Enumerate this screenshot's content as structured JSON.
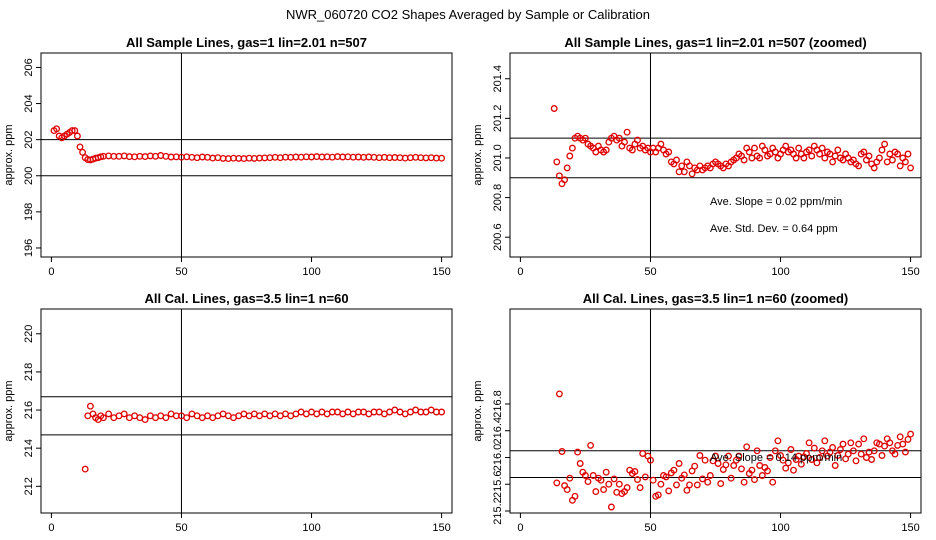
{
  "suptitle": "NWR_060720  CO2 Shapes Averaged by Sample or Calibration",
  "chart_data": [
    {
      "type": "scatter",
      "title": "All Sample Lines, gas=1 lin=2.01 n=507",
      "ylabel": "approx. ppm",
      "xlim": [
        -4,
        154
      ],
      "ylim": [
        195.5,
        206.8
      ],
      "xticks": [
        0,
        50,
        100,
        150
      ],
      "yticks": [
        196,
        198,
        200,
        202,
        204,
        206
      ],
      "vline": 50,
      "hlines": [
        200,
        202
      ],
      "annotations": [],
      "series": [
        {
          "color": "#e00000",
          "x": [
            1,
            2,
            3,
            4,
            5,
            6,
            7,
            8,
            9,
            10,
            11,
            12,
            13,
            14,
            15,
            16,
            17,
            18,
            19,
            20,
            22,
            24,
            26,
            28,
            30,
            32,
            34,
            36,
            38,
            40,
            42,
            44,
            46,
            48,
            50,
            52,
            54,
            56,
            58,
            60,
            62,
            64,
            66,
            68,
            70,
            72,
            74,
            76,
            78,
            80,
            82,
            84,
            86,
            88,
            90,
            92,
            94,
            96,
            98,
            100,
            102,
            104,
            106,
            108,
            110,
            112,
            114,
            116,
            118,
            120,
            122,
            124,
            126,
            128,
            130,
            132,
            134,
            136,
            138,
            140,
            142,
            144,
            146,
            148,
            150
          ],
          "y": [
            202.5,
            202.6,
            202.2,
            202.1,
            202.2,
            202.3,
            202.4,
            202.5,
            202.5,
            202.2,
            201.6,
            201.3,
            201.0,
            200.9,
            200.88,
            200.92,
            200.97,
            201.0,
            201.05,
            201.08,
            201.1,
            201.08,
            201.08,
            201.1,
            201.06,
            201.05,
            201.08,
            201.06,
            201.1,
            201.08,
            201.12,
            201.08,
            201.04,
            201.05,
            201.03,
            201.05,
            201.02,
            201.0,
            201.04,
            201.02,
            200.98,
            201.0,
            200.96,
            200.95,
            200.97,
            200.96,
            200.95,
            200.97,
            200.96,
            200.98,
            200.99,
            201.0,
            201.02,
            201.0,
            201.03,
            201.02,
            201.04,
            201.03,
            201.05,
            201.04,
            201.06,
            201.04,
            201.05,
            201.03,
            201.06,
            201.04,
            201.05,
            201.03,
            201.04,
            201.02,
            201.04,
            201.02,
            201.0,
            201.02,
            201.0,
            201.01,
            201.0,
            200.98,
            201.0,
            201.02,
            201.0,
            200.99,
            201.0,
            200.98,
            200.97
          ]
        }
      ]
    },
    {
      "type": "scatter",
      "title": "All Sample Lines, gas=1 lin=2.01 n=507 (zoomed)",
      "ylabel": "approx. ppm",
      "xlim": [
        -4,
        154
      ],
      "ylim": [
        200.5,
        201.53
      ],
      "xticks": [
        0,
        50,
        100,
        150
      ],
      "yticks": [
        200.6,
        200.8,
        201.0,
        201.2,
        201.4
      ],
      "ytick_labels": [
        "200.6",
        "200.8",
        "201.0",
        "201.2",
        "201.4"
      ],
      "vline": 50,
      "hlines": [
        200.9,
        201.1
      ],
      "annotations": [
        "Ave. Slope =  0.02  ppm/min",
        "Ave. Std. Dev. =  0.64  ppm"
      ],
      "series": [
        {
          "color": "#e00000",
          "x": [
            13,
            14,
            15,
            16,
            17,
            18,
            19,
            20,
            21,
            22,
            23,
            24,
            25,
            26,
            27,
            28,
            29,
            30,
            31,
            32,
            33,
            34,
            35,
            36,
            37,
            38,
            39,
            40,
            41,
            42,
            43,
            44,
            45,
            46,
            47,
            48,
            49,
            50,
            51,
            52,
            53,
            54,
            55,
            56,
            57,
            58,
            59,
            60,
            61,
            62,
            63,
            64,
            65,
            66,
            67,
            68,
            69,
            70,
            71,
            72,
            73,
            74,
            75,
            76,
            77,
            78,
            79,
            80,
            81,
            82,
            83,
            84,
            85,
            86,
            87,
            88,
            89,
            90,
            91,
            92,
            93,
            94,
            95,
            96,
            97,
            98,
            99,
            100,
            101,
            102,
            103,
            104,
            105,
            106,
            107,
            108,
            109,
            110,
            111,
            112,
            113,
            114,
            115,
            116,
            117,
            118,
            119,
            120,
            121,
            122,
            123,
            124,
            125,
            126,
            127,
            128,
            129,
            130,
            131,
            132,
            133,
            134,
            135,
            136,
            137,
            138,
            139,
            140,
            141,
            142,
            143,
            144,
            145,
            146,
            147,
            148,
            149,
            150
          ],
          "y": [
            201.25,
            200.98,
            200.91,
            200.87,
            200.89,
            200.95,
            201.01,
            201.05,
            201.1,
            201.11,
            201.1,
            201.09,
            201.1,
            201.07,
            201.06,
            201.05,
            201.03,
            201.06,
            201.04,
            201.03,
            201.04,
            201.08,
            201.1,
            201.11,
            201.09,
            201.1,
            201.06,
            201.08,
            201.13,
            201.05,
            201.04,
            201.07,
            201.09,
            201.05,
            201.06,
            201.04,
            201.05,
            201.03,
            201.05,
            201.03,
            201.05,
            201.07,
            201.04,
            201.02,
            201.03,
            200.98,
            200.97,
            200.99,
            200.93,
            200.96,
            200.93,
            200.98,
            200.96,
            200.92,
            200.95,
            200.94,
            200.96,
            200.94,
            200.95,
            200.96,
            200.95,
            200.97,
            200.98,
            200.97,
            200.96,
            200.95,
            200.97,
            200.96,
            200.98,
            200.99,
            201.0,
            201.02,
            201.01,
            200.99,
            201.05,
            201.03,
            201.0,
            201.05,
            201.01,
            201.0,
            201.06,
            201.04,
            201.01,
            201.02,
            201.05,
            201.03,
            201.0,
            201.02,
            201.04,
            201.06,
            201.03,
            201.04,
            201.02,
            201.0,
            201.05,
            201.02,
            201.0,
            201.03,
            201.04,
            201.01,
            201.06,
            201.04,
            201.02,
            201.05,
            201.0,
            201.03,
            201.02,
            200.98,
            201.01,
            201.04,
            201.0,
            200.99,
            201.02,
            201.0,
            200.98,
            200.99,
            200.97,
            200.96,
            201.02,
            201.03,
            200.99,
            201.01,
            200.97,
            200.95,
            200.98,
            201.0,
            201.04,
            201.07,
            200.98,
            201.02,
            200.99,
            201.03,
            201.02,
            200.96,
            201.0,
            200.98,
            201.02,
            200.95
          ]
        }
      ]
    },
    {
      "type": "scatter",
      "title": "All Cal. Lines, gas=3.5 lin=1 n=60",
      "ylabel": "approx. ppm",
      "xlim": [
        -4,
        154
      ],
      "ylim": [
        210.6,
        221.3
      ],
      "xticks": [
        0,
        50,
        100,
        150
      ],
      "yticks": [
        212,
        214,
        216,
        218,
        220
      ],
      "vline": 50,
      "hlines": [
        214.7,
        216.7
      ],
      "annotations": [],
      "series": [
        {
          "color": "#e00000",
          "x": [
            13,
            14,
            15,
            16,
            17,
            18,
            19,
            20,
            22,
            24,
            26,
            28,
            30,
            32,
            34,
            36,
            38,
            40,
            42,
            44,
            46,
            48,
            50,
            52,
            54,
            56,
            58,
            60,
            62,
            64,
            66,
            68,
            70,
            72,
            74,
            76,
            78,
            80,
            82,
            84,
            86,
            88,
            90,
            92,
            94,
            96,
            98,
            100,
            102,
            104,
            106,
            108,
            110,
            112,
            114,
            116,
            118,
            120,
            122,
            124,
            126,
            128,
            130,
            132,
            134,
            136,
            138,
            140,
            142,
            144,
            146,
            148,
            150
          ],
          "y": [
            212.9,
            215.7,
            216.2,
            215.8,
            215.6,
            215.5,
            215.7,
            215.6,
            215.8,
            215.6,
            215.7,
            215.8,
            215.6,
            215.7,
            215.6,
            215.5,
            215.7,
            215.6,
            215.7,
            215.6,
            215.8,
            215.7,
            215.7,
            215.6,
            215.8,
            215.7,
            215.6,
            215.7,
            215.6,
            215.7,
            215.8,
            215.7,
            215.6,
            215.7,
            215.8,
            215.7,
            215.8,
            215.7,
            215.8,
            215.7,
            215.8,
            215.7,
            215.8,
            215.7,
            215.8,
            215.9,
            215.8,
            215.9,
            215.8,
            215.9,
            215.8,
            215.9,
            215.9,
            215.8,
            215.9,
            215.8,
            215.9,
            215.9,
            215.8,
            215.9,
            215.9,
            215.8,
            215.9,
            216.0,
            215.9,
            215.8,
            215.9,
            216.0,
            215.9,
            215.9,
            216.0,
            215.9,
            215.9
          ]
        }
      ]
    },
    {
      "type": "scatter",
      "title": "All Cal. Lines, gas=3.5 lin=1 n=60 (zoomed)",
      "ylabel": "approx. ppm",
      "xlim": [
        -4,
        154
      ],
      "ylim": [
        215.17,
        218.22
      ],
      "xticks": [
        0,
        50,
        100,
        150
      ],
      "yticks": [
        215.2,
        215.6,
        216.0,
        216.4,
        216.8
      ],
      "ytick_labels": [
        "215.2",
        "215.6",
        "216.0",
        "216.4",
        "216.8"
      ],
      "vline": 50,
      "hlines": [
        215.7,
        216.1
      ],
      "annotations": [
        "Ave. Slope =  0.14  ppm/min"
      ],
      "series": [
        {
          "color": "#e00000",
          "x": [
            14,
            15,
            16,
            17,
            18,
            19,
            20,
            21,
            22,
            23,
            24,
            25,
            26,
            27,
            28,
            29,
            30,
            31,
            32,
            33,
            34,
            35,
            36,
            37,
            38,
            39,
            40,
            41,
            42,
            43,
            44,
            45,
            46,
            47,
            48,
            49,
            50,
            51,
            52,
            53,
            54,
            55,
            56,
            57,
            58,
            59,
            60,
            61,
            62,
            63,
            64,
            65,
            66,
            67,
            68,
            69,
            70,
            71,
            72,
            73,
            74,
            75,
            76,
            77,
            78,
            79,
            80,
            81,
            82,
            83,
            84,
            85,
            86,
            87,
            88,
            89,
            90,
            91,
            92,
            93,
            94,
            95,
            96,
            97,
            98,
            99,
            100,
            101,
            102,
            103,
            104,
            105,
            106,
            107,
            108,
            109,
            110,
            111,
            112,
            113,
            114,
            115,
            116,
            117,
            118,
            119,
            120,
            121,
            122,
            123,
            124,
            125,
            126,
            127,
            128,
            129,
            130,
            131,
            132,
            133,
            134,
            135,
            136,
            137,
            138,
            139,
            140,
            141,
            142,
            143,
            144,
            145,
            146,
            147,
            148,
            149,
            150
          ],
          "y": [
            215.62,
            216.95,
            216.09,
            215.58,
            215.52,
            215.69,
            215.36,
            215.42,
            216.08,
            215.91,
            215.78,
            215.73,
            215.64,
            216.18,
            215.73,
            215.49,
            215.69,
            215.66,
            215.52,
            215.78,
            215.6,
            215.26,
            215.68,
            215.48,
            215.6,
            215.46,
            215.49,
            215.55,
            215.81,
            215.76,
            215.79,
            215.67,
            215.55,
            216.06,
            215.71,
            216.02,
            215.96,
            215.66,
            215.42,
            215.44,
            215.6,
            215.73,
            215.71,
            215.5,
            215.77,
            215.81,
            215.59,
            215.91,
            215.69,
            215.74,
            215.51,
            215.59,
            215.8,
            215.87,
            215.59,
            216.03,
            215.68,
            215.96,
            215.63,
            215.73,
            215.95,
            216.02,
            215.91,
            215.61,
            215.82,
            215.89,
            216.02,
            215.69,
            215.88,
            215.96,
            216.02,
            215.83,
            215.63,
            216.16,
            215.76,
            215.81,
            215.67,
            216.1,
            215.88,
            215.73,
            215.85,
            215.8,
            216.0,
            215.63,
            216.1,
            216.25,
            216.03,
            215.96,
            215.84,
            215.92,
            216.12,
            215.81,
            215.97,
            216.02,
            215.9,
            216.01,
            216.06,
            216.22,
            215.97,
            216.14,
            215.92,
            216.0,
            216.1,
            216.25,
            216.02,
            216.08,
            216.15,
            215.88,
            216.03,
            216.12,
            216.2,
            215.98,
            216.05,
            216.22,
            216.1,
            215.95,
            216.2,
            216.05,
            216.28,
            216.0,
            216.08,
            215.97,
            216.1,
            216.22,
            216.2,
            216.03,
            216.17,
            216.28,
            216.22,
            216.1,
            216.05,
            216.18,
            216.31,
            216.2,
            216.08,
            216.27,
            216.35
          ]
        }
      ]
    }
  ]
}
